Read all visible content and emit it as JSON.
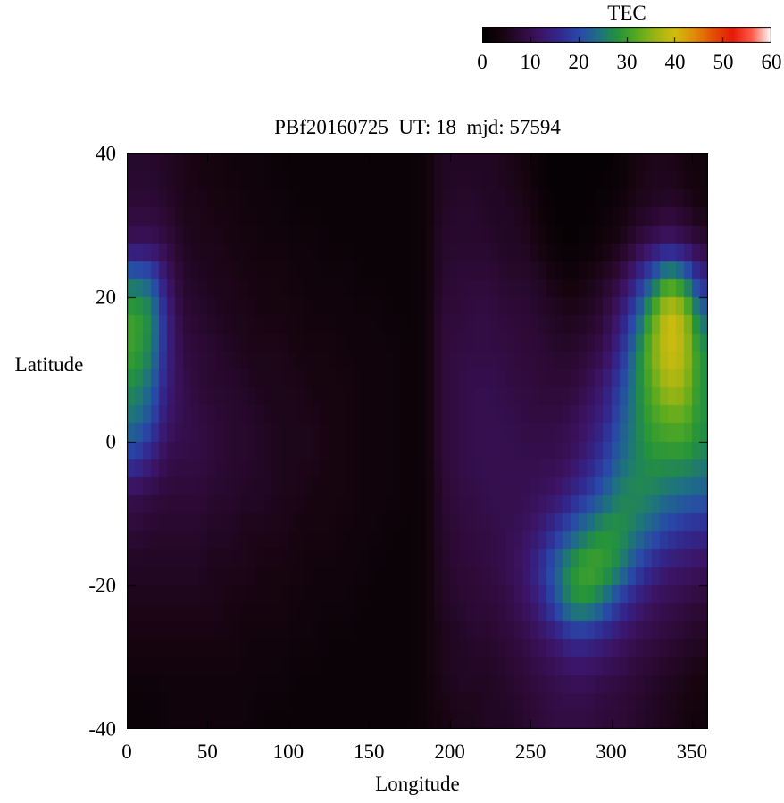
{
  "title": "PBf20160725  UT: 18  mjd: 57594",
  "colorbar": {
    "title": "TEC",
    "min": 0,
    "max": 60,
    "ticks": [
      0,
      10,
      20,
      30,
      40,
      50,
      60
    ]
  },
  "chart_data": {
    "type": "heatmap",
    "title": "PBf20160725  UT: 18  mjd: 57594",
    "xlabel": "Longitude",
    "ylabel": "Latitude",
    "xlim": [
      0,
      360
    ],
    "ylim": [
      -40,
      40
    ],
    "xticks": [
      0,
      50,
      100,
      150,
      200,
      250,
      300,
      350
    ],
    "yticks": [
      -40,
      -20,
      0,
      20,
      40
    ],
    "grid": false,
    "colorbar": {
      "title": "TEC",
      "min": 0,
      "max": 60,
      "ticks": [
        0,
        10,
        20,
        30,
        40,
        50,
        60
      ],
      "position": "top-right",
      "stops": [
        [
          0,
          "#000000"
        ],
        [
          4,
          "#16040f"
        ],
        [
          8,
          "#2e0a38"
        ],
        [
          12,
          "#3c1466"
        ],
        [
          16,
          "#32288e"
        ],
        [
          20,
          "#2948a8"
        ],
        [
          24,
          "#1e6e86"
        ],
        [
          28,
          "#23933c"
        ],
        [
          32,
          "#55aa20"
        ],
        [
          36,
          "#9cb414"
        ],
        [
          40,
          "#d2bc0e"
        ],
        [
          44,
          "#e08c0a"
        ],
        [
          48,
          "#e24e06"
        ],
        [
          52,
          "#e61a0a"
        ],
        [
          56,
          "#ff5a46"
        ],
        [
          60,
          "#ffffff"
        ]
      ]
    },
    "lon_centers": [
      5,
      15,
      25,
      35,
      45,
      55,
      65,
      75,
      85,
      95,
      105,
      115,
      125,
      135,
      145,
      155,
      165,
      175,
      185,
      195,
      205,
      215,
      225,
      235,
      245,
      255,
      265,
      275,
      285,
      295,
      305,
      315,
      325,
      335,
      345,
      355
    ],
    "lat_centers_top_to_bottom": [
      37.5,
      32.5,
      27.5,
      22.5,
      17.5,
      12.5,
      7.5,
      2.5,
      -2.5,
      -7.5,
      -12.5,
      -17.5,
      -22.5,
      -27.5,
      -32.5,
      -37.5
    ],
    "values_rows_top_to_bottom": [
      [
        7,
        7,
        6,
        5,
        4,
        4,
        3,
        3,
        3,
        2,
        2,
        2,
        2,
        2,
        2,
        2,
        2,
        2,
        3,
        6,
        6,
        6,
        6,
        5,
        4,
        2,
        1,
        1,
        1,
        1,
        2,
        4,
        5,
        5,
        4,
        3
      ],
      [
        8,
        8,
        7,
        5,
        5,
        4,
        4,
        3,
        3,
        3,
        2,
        2,
        2,
        2,
        2,
        2,
        2,
        2,
        3,
        6,
        7,
        7,
        6,
        6,
        5,
        3,
        1,
        1,
        1,
        2,
        3,
        5,
        6,
        7,
        6,
        4
      ],
      [
        11,
        11,
        9,
        6,
        5,
        5,
        4,
        4,
        3,
        3,
        3,
        3,
        2,
        2,
        2,
        2,
        2,
        2,
        3,
        7,
        7,
        7,
        7,
        6,
        6,
        4,
        2,
        1,
        2,
        3,
        5,
        8,
        11,
        13,
        11,
        8
      ],
      [
        24,
        22,
        12,
        7,
        6,
        5,
        5,
        4,
        4,
        4,
        3,
        3,
        3,
        3,
        2,
        2,
        2,
        2,
        3,
        7,
        8,
        8,
        8,
        7,
        7,
        6,
        4,
        3,
        4,
        6,
        9,
        15,
        22,
        30,
        26,
        16
      ],
      [
        30,
        27,
        15,
        8,
        7,
        6,
        5,
        5,
        4,
        4,
        4,
        3,
        3,
        3,
        3,
        3,
        2,
        2,
        3,
        8,
        8,
        9,
        9,
        8,
        8,
        7,
        6,
        5,
        6,
        8,
        13,
        21,
        31,
        40,
        37,
        24
      ],
      [
        30,
        26,
        15,
        9,
        8,
        7,
        6,
        5,
        5,
        5,
        4,
        4,
        4,
        3,
        3,
        3,
        3,
        2,
        3,
        8,
        9,
        9,
        9,
        9,
        8,
        8,
        7,
        7,
        8,
        10,
        16,
        25,
        34,
        40,
        38,
        28
      ],
      [
        27,
        23,
        14,
        10,
        8,
        7,
        7,
        6,
        5,
        5,
        5,
        4,
        4,
        4,
        3,
        3,
        3,
        2,
        3,
        8,
        9,
        10,
        10,
        9,
        9,
        8,
        8,
        8,
        10,
        13,
        19,
        26,
        32,
        37,
        36,
        28
      ],
      [
        24,
        20,
        12,
        10,
        9,
        8,
        7,
        7,
        6,
        5,
        5,
        5,
        4,
        4,
        3,
        3,
        3,
        2,
        3,
        8,
        9,
        10,
        10,
        10,
        9,
        9,
        9,
        10,
        12,
        15,
        21,
        26,
        30,
        32,
        32,
        28
      ],
      [
        18,
        14,
        10,
        9,
        9,
        8,
        7,
        7,
        6,
        5,
        5,
        5,
        4,
        4,
        3,
        3,
        3,
        2,
        3,
        8,
        9,
        10,
        10,
        10,
        10,
        10,
        10,
        11,
        14,
        18,
        23,
        26,
        28,
        28,
        28,
        26
      ],
      [
        10,
        9,
        8,
        8,
        8,
        7,
        7,
        6,
        6,
        5,
        5,
        4,
        4,
        4,
        3,
        3,
        3,
        2,
        3,
        7,
        9,
        9,
        10,
        10,
        10,
        11,
        12,
        15,
        18,
        22,
        26,
        27,
        26,
        24,
        23,
        22
      ],
      [
        8,
        7,
        7,
        7,
        7,
        6,
        6,
        5,
        5,
        5,
        4,
        4,
        4,
        3,
        3,
        3,
        2,
        2,
        3,
        7,
        8,
        9,
        9,
        10,
        11,
        13,
        17,
        21,
        25,
        28,
        28,
        25,
        22,
        19,
        17,
        16
      ],
      [
        6,
        6,
        6,
        6,
        6,
        5,
        5,
        5,
        4,
        4,
        4,
        3,
        3,
        3,
        3,
        2,
        2,
        2,
        3,
        6,
        8,
        8,
        9,
        10,
        12,
        16,
        22,
        28,
        31,
        30,
        26,
        20,
        16,
        13,
        12,
        11
      ],
      [
        5,
        5,
        5,
        5,
        5,
        5,
        4,
        4,
        4,
        4,
        3,
        3,
        3,
        3,
        2,
        2,
        2,
        2,
        3,
        6,
        7,
        8,
        8,
        9,
        11,
        14,
        20,
        27,
        28,
        24,
        18,
        14,
        11,
        10,
        9,
        8
      ],
      [
        4,
        4,
        4,
        4,
        4,
        4,
        4,
        3,
        3,
        3,
        3,
        3,
        2,
        2,
        2,
        2,
        2,
        2,
        3,
        5,
        6,
        7,
        7,
        8,
        9,
        11,
        13,
        16,
        16,
        14,
        12,
        10,
        9,
        8,
        7,
        6
      ],
      [
        3,
        3,
        3,
        3,
        3,
        3,
        3,
        3,
        3,
        3,
        2,
        2,
        2,
        2,
        2,
        2,
        2,
        2,
        3,
        5,
        6,
        6,
        6,
        7,
        8,
        9,
        10,
        11,
        11,
        10,
        9,
        8,
        7,
        6,
        5,
        4
      ],
      [
        2,
        2,
        3,
        3,
        3,
        3,
        3,
        3,
        2,
        2,
        2,
        2,
        2,
        2,
        2,
        2,
        2,
        2,
        3,
        4,
        5,
        5,
        6,
        6,
        7,
        8,
        9,
        9,
        9,
        8,
        8,
        7,
        6,
        5,
        4,
        3
      ]
    ]
  }
}
